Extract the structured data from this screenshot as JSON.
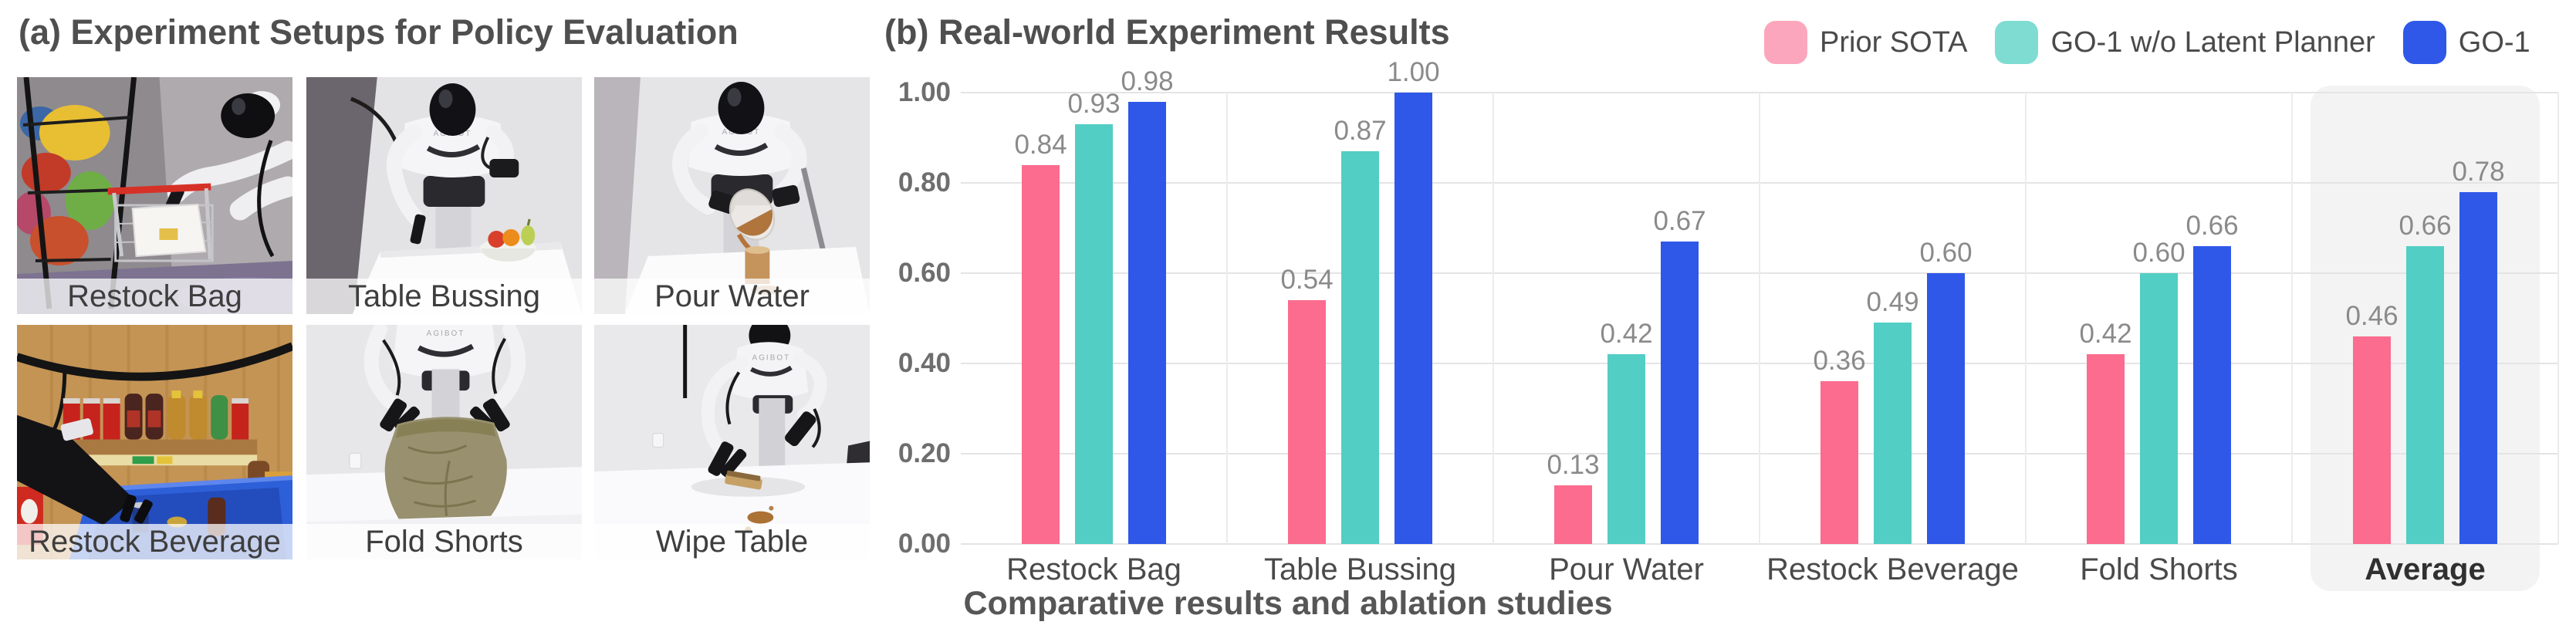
{
  "figure": {
    "panel_a": {
      "title": "(a) Experiment Setups for Policy Evaluation",
      "robot_brand": "AGIBOT",
      "photos": [
        {
          "label": "Restock Bag"
        },
        {
          "label": "Table Bussing"
        },
        {
          "label": "Pour Water"
        },
        {
          "label": "Restock Beverage"
        },
        {
          "label": "Fold Shorts"
        },
        {
          "label": "Wipe Table"
        }
      ]
    },
    "panel_b": {
      "title": "(b) Real-world Experiment Results",
      "caption": "Comparative results and ablation studies",
      "legend": [
        {
          "label": "Prior SOTA",
          "swatch_color": "#FBA6BC"
        },
        {
          "label": "GO-1 w/o Latent Planner",
          "swatch_color": "#7EDCD3"
        },
        {
          "label": "GO-1",
          "swatch_color": "#2F58E8"
        }
      ]
    }
  },
  "chart_data": {
    "type": "bar",
    "title": "(b) Real-world Experiment Results",
    "categories": [
      "Restock Bag",
      "Table Bussing",
      "Pour Water",
      "Restock Beverage",
      "Fold Shorts",
      "Average"
    ],
    "series": [
      {
        "name": "Prior SOTA",
        "color": "#FB6C8E",
        "values": [
          0.84,
          0.54,
          0.13,
          0.36,
          0.42,
          0.46
        ]
      },
      {
        "name": "GO-1 w/o Latent Planner",
        "color": "#53CEC4",
        "values": [
          0.93,
          0.87,
          0.42,
          0.49,
          0.6,
          0.66
        ]
      },
      {
        "name": "GO-1",
        "color": "#2F58E8",
        "values": [
          0.98,
          1.0,
          0.67,
          0.6,
          0.66,
          0.78
        ]
      }
    ],
    "y_ticks": [
      "0.00",
      "0.20",
      "0.40",
      "0.60",
      "0.80",
      "1.00"
    ],
    "ylim": [
      0,
      1.0
    ],
    "grid": true,
    "legend_position": "top-right",
    "highlighted_category": "Average",
    "xlabel": "",
    "ylabel": "",
    "value_labels": true
  }
}
